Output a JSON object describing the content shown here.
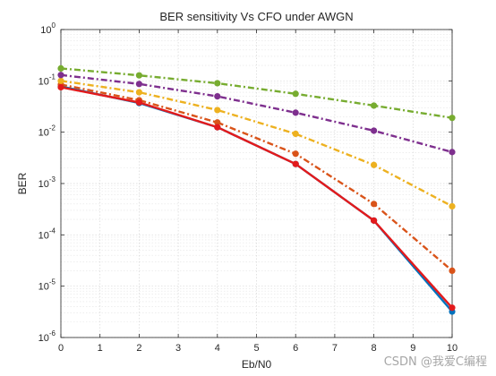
{
  "chart_data": {
    "type": "line",
    "title": "BER sensitivity Vs CFO under AWGN",
    "xlabel": "Eb/N0",
    "ylabel": "BER",
    "xlim": [
      0,
      10
    ],
    "ylim": [
      1e-06,
      1
    ],
    "yscale": "log",
    "xticks": [
      "0",
      "1",
      "2",
      "3",
      "4",
      "5",
      "6",
      "7",
      "8",
      "9",
      "10"
    ],
    "yticks": [
      {
        "base": "10",
        "exp": "0"
      },
      {
        "base": "10",
        "exp": "-1"
      },
      {
        "base": "10",
        "exp": "-2"
      },
      {
        "base": "10",
        "exp": "-3"
      },
      {
        "base": "10",
        "exp": "-4"
      },
      {
        "base": "10",
        "exp": "-5"
      },
      {
        "base": "10",
        "exp": "-6"
      }
    ],
    "grid": true,
    "minor_grid": true,
    "x": [
      0,
      2,
      4,
      6,
      8,
      10
    ],
    "series": [
      {
        "color": "#0072BD",
        "style": "solid",
        "values": [
          0.078,
          0.037,
          0.0125,
          0.0024,
          0.00019,
          3.2e-06
        ]
      },
      {
        "color": "#D95319",
        "style": "dashdot",
        "values": [
          0.085,
          0.042,
          0.0155,
          0.0038,
          0.0004,
          2e-05
        ]
      },
      {
        "color": "#EDB120",
        "style": "dashdot",
        "values": [
          0.1,
          0.06,
          0.027,
          0.0093,
          0.0023,
          0.00036
        ]
      },
      {
        "color": "#7E2F8E",
        "style": "dashdot",
        "values": [
          0.13,
          0.087,
          0.05,
          0.024,
          0.0107,
          0.0041
        ]
      },
      {
        "color": "#77AC30",
        "style": "dashdot",
        "values": [
          0.175,
          0.128,
          0.09,
          0.056,
          0.033,
          0.019
        ]
      },
      {
        "color": "#E31A1C",
        "style": "solid",
        "values": [
          0.075,
          0.038,
          0.0125,
          0.0024,
          0.00019,
          3.8e-06
        ]
      }
    ]
  },
  "watermark": "CSDN @我爱C编程"
}
